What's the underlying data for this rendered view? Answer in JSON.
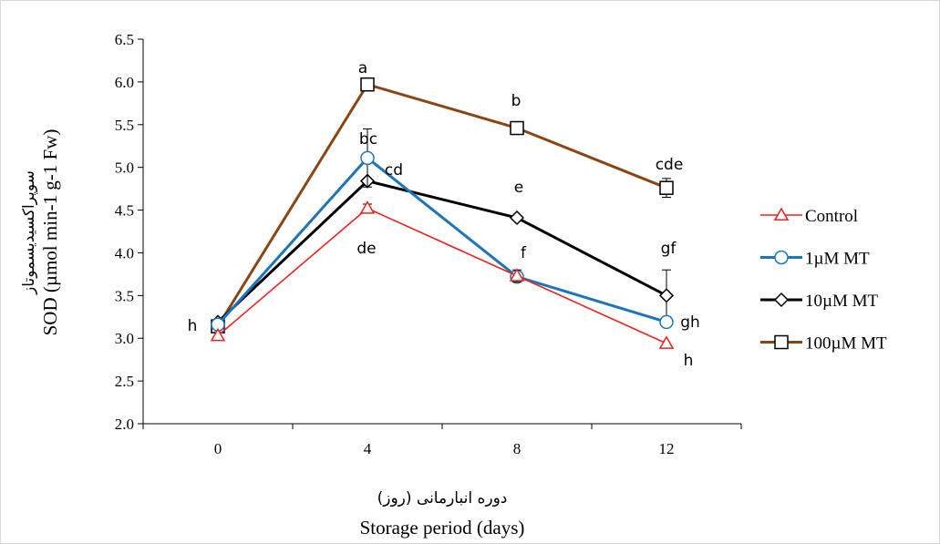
{
  "chart_data": {
    "type": "line",
    "title": "",
    "xlabel": "Storage period (days)",
    "xlabel_fa": "دوره انبارمانی (روز)",
    "ylabel": "SOD (µmol min-1 g-1 Fw)",
    "ylabel_fa": "سوپراکسیدیسموتاز",
    "x": [
      0,
      4,
      8,
      12
    ],
    "x_tick_labels": [
      "0",
      "4",
      "8",
      "12"
    ],
    "ylim": [
      2.0,
      6.5
    ],
    "y_ticks": [
      "2.0",
      "2.5",
      "3.0",
      "3.5",
      "4.0",
      "4.5",
      "5.0",
      "5.5",
      "6.0",
      "6.5"
    ],
    "grid": false,
    "legend_position": "right",
    "series": [
      {
        "name": "Control",
        "color": "#e8231f",
        "marker": "triangle",
        "values": [
          3.03,
          4.52,
          3.73,
          2.94
        ],
        "errors": [
          0,
          0.05,
          0.07,
          0
        ],
        "letters": [
          "",
          "de",
          "",
          "h"
        ]
      },
      {
        "name": "1µM MT",
        "color": "#1c75bc",
        "marker": "circle",
        "values": [
          3.16,
          5.11,
          3.72,
          3.19
        ],
        "errors": [
          0,
          0.34,
          0,
          0
        ],
        "letters": [
          "",
          "bc",
          "f",
          "gh"
        ]
      },
      {
        "name": "10µM MT",
        "color": "#000000",
        "marker": "diamond",
        "values": [
          3.19,
          4.84,
          4.41,
          3.5
        ],
        "errors": [
          0,
          0,
          0,
          0.3
        ],
        "letters": [
          "",
          "cd",
          "e",
          "gf"
        ]
      },
      {
        "name": "100µM MT",
        "color": "#8b4513",
        "marker": "square",
        "values": [
          3.14,
          5.97,
          5.46,
          4.76
        ],
        "errors": [
          0,
          0,
          0,
          0.11
        ],
        "letters": [
          "h",
          "a",
          "b",
          "cde"
        ]
      }
    ]
  }
}
